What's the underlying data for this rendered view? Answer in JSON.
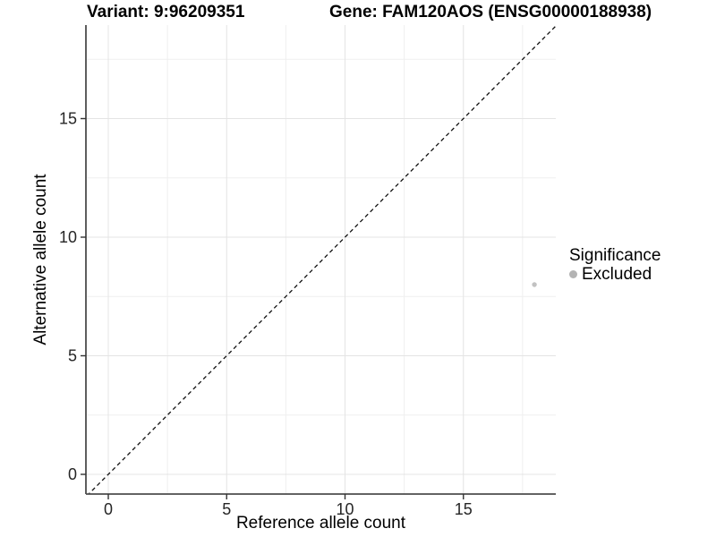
{
  "header": {
    "title_left": "Variant: 9:96209351",
    "title_right": "Gene: FAM120AOS (ENSG00000188938)"
  },
  "legend": {
    "title": "Significance",
    "items": [
      {
        "label": "Excluded",
        "color": "#b3b3b3",
        "shape": "circle"
      }
    ],
    "position": "right"
  },
  "chart_data": {
    "type": "scatter",
    "title": "Variant: 9:96209351   Gene: FAM120AOS (ENSG00000188938)",
    "xlabel": "Reference allele count",
    "ylabel": "Alternative allele count",
    "xlim": [
      -0.9,
      18.9
    ],
    "ylim": [
      -0.9,
      18.9
    ],
    "x_ticks": [
      0,
      5,
      10,
      15
    ],
    "y_ticks": [
      0,
      5,
      10,
      15
    ],
    "x_minor_ticks": [
      2.5,
      7.5,
      12.5,
      17.5
    ],
    "y_minor_ticks": [
      2.5,
      7.5,
      12.5,
      17.5
    ],
    "grid": true,
    "series": [
      {
        "name": "Excluded",
        "color": "#c2c2c2",
        "points": [
          {
            "x": 18,
            "y": 8
          }
        ]
      }
    ],
    "reference_line": {
      "type": "identity",
      "style": "dashed",
      "color": "#111111"
    }
  },
  "colors": {
    "background": "#ffffff",
    "axis_line": "#4d4d4d",
    "tick_mark": "#333333",
    "tick_label": "#262626",
    "grid_major": "#e4e4e4",
    "grid_minor": "#efefef"
  }
}
